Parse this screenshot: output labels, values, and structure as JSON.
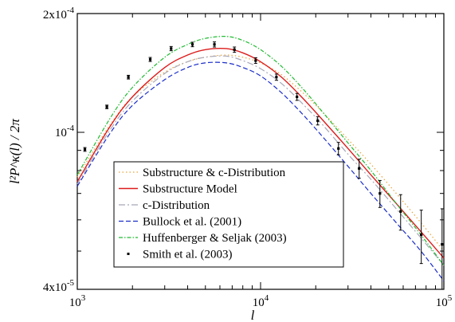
{
  "chart_data": {
    "type": "line",
    "xlabel": "l",
    "ylabel": "l²P^κ(l) / 2π",
    "xscale": "log",
    "yscale": "log",
    "xlim": [
      1000,
      100000
    ],
    "ylim": [
      4e-05,
      0.0002
    ],
    "x_tick_labels": [
      {
        "value": 1000,
        "base": "10",
        "exp": "3"
      },
      {
        "value": 10000,
        "base": "10",
        "exp": "4"
      },
      {
        "value": 100000,
        "base": "10",
        "exp": "5"
      }
    ],
    "y_tick_labels": [
      {
        "value": 4e-05,
        "base": "4x10",
        "exp": "-5"
      },
      {
        "value": 0.0001,
        "base": "10",
        "exp": "-4"
      },
      {
        "value": 0.0002,
        "base": "2x10",
        "exp": "-4"
      }
    ],
    "legend_position": "bottom-left",
    "series": [
      {
        "name": "Substructure & c-Distribution",
        "color": "#e8a33a",
        "style": "dotted",
        "x": [
          1000,
          1500,
          2000,
          3000,
          4000,
          5000,
          6500,
          8000,
          10000,
          13000,
          17000,
          22000,
          30000,
          40000,
          55000,
          75000,
          100000
        ],
        "y": [
          7.7e-05,
          0.000104,
          0.000123,
          0.000142,
          0.000151,
          0.000155,
          0.000157,
          0.000155,
          0.00015,
          0.00014,
          0.000126,
          0.000112,
          9.6e-05,
          8.3e-05,
          7e-05,
          5.9e-05,
          5e-05
        ]
      },
      {
        "name": "Substructure Model",
        "color": "#dd1c1c",
        "style": "solid",
        "x": [
          1000,
          1500,
          2000,
          3000,
          4000,
          5000,
          6500,
          8000,
          10000,
          13000,
          17000,
          22000,
          30000,
          40000,
          55000,
          75000,
          100000
        ],
        "y": [
          7.5e-05,
          0.000103,
          0.000123,
          0.000146,
          0.000157,
          0.000162,
          0.000163,
          0.000159,
          0.000151,
          0.000138,
          0.000122,
          0.000107,
          9.1e-05,
          7.8e-05,
          6.6e-05,
          5.6e-05,
          4.8e-05
        ]
      },
      {
        "name": "c-Distribution",
        "color": "#a8a8b8",
        "style": "dashdot",
        "x": [
          1000,
          1500,
          2000,
          3000,
          4000,
          5000,
          6500,
          8000,
          10000,
          13000,
          17000,
          22000,
          30000,
          40000,
          55000,
          75000,
          100000
        ],
        "y": [
          7.4e-05,
          0.000101,
          0.00012,
          0.000141,
          0.000151,
          0.000155,
          0.000156,
          0.000152,
          0.000145,
          0.000133,
          0.000118,
          0.000104,
          8.8e-05,
          7.6e-05,
          6.4e-05,
          5.4e-05,
          4.6e-05
        ]
      },
      {
        "name": "Bullock et al. (2001)",
        "color": "#1c2ec8",
        "style": "dashed",
        "x": [
          1000,
          1500,
          2000,
          3000,
          4000,
          5000,
          6500,
          8000,
          10000,
          13000,
          17000,
          22000,
          30000,
          40000,
          55000,
          75000,
          100000
        ],
        "y": [
          7.3e-05,
          9.9e-05,
          0.000117,
          0.000136,
          0.000146,
          0.00015,
          0.00015,
          0.000146,
          0.000139,
          0.000126,
          0.000111,
          9.7e-05,
          8.2e-05,
          7e-05,
          5.9e-05,
          5e-05,
          4.2e-05
        ]
      },
      {
        "name": "Huffenberger & Seljak (2003)",
        "color": "#22bb33",
        "style": "dashdot2",
        "x": [
          1000,
          1500,
          2000,
          3000,
          4000,
          5000,
          6500,
          8000,
          10000,
          13000,
          17000,
          22000,
          30000,
          40000,
          55000,
          75000,
          100000
        ],
        "y": [
          7.8e-05,
          0.000108,
          0.00013,
          0.000155,
          0.000167,
          0.000173,
          0.000175,
          0.000171,
          0.000162,
          0.000147,
          0.000129,
          0.000112,
          9.4e-05,
          8e-05,
          6.6e-05,
          5.5e-05,
          4.6e-05
        ]
      }
    ],
    "points": {
      "name": "Smith et al. (2003)",
      "color": "#000000",
      "x": [
        1100,
        1450,
        1900,
        2500,
        3250,
        4250,
        5600,
        7200,
        9400,
        12200,
        15800,
        20500,
        26600,
        34500,
        44800,
        58100,
        75300,
        97800
      ],
      "y": [
        9.05e-05,
        0.000116,
        0.000138,
        0.000153,
        0.000163,
        0.000167,
        0.000167,
        0.000162,
        0.000152,
        0.000138,
        0.000123,
        0.000107,
        9.1e-05,
        8.1e-05,
        7e-05,
        6.3e-05,
        5.5e-05,
        5.2e-05
      ],
      "err": [
        1e-06,
        1.2e-06,
        1.5e-06,
        1.8e-06,
        2e-06,
        2.2e-06,
        2.5e-06,
        2.5e-06,
        2.5e-06,
        2.5e-06,
        2.5e-06,
        2.6e-06,
        3.3e-06,
        4.5e-06,
        5.5e-06,
        6.5e-06,
        8.5e-06,
        1.2e-05
      ]
    }
  }
}
